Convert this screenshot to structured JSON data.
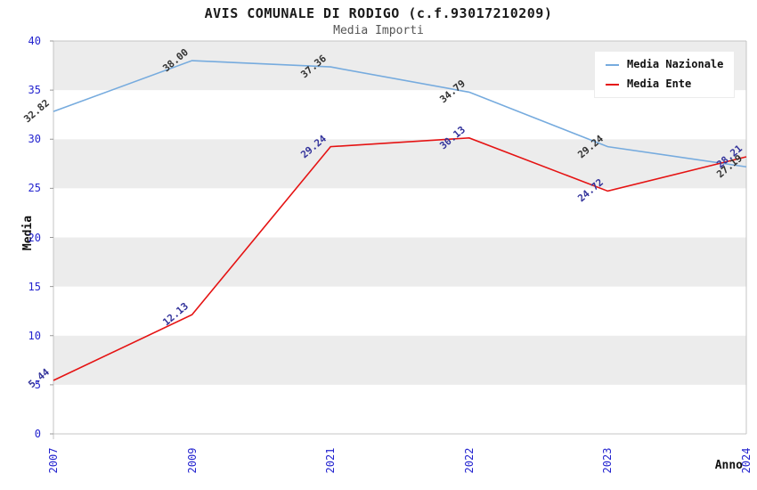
{
  "chart_data": {
    "type": "line",
    "title": "AVIS COMUNALE DI RODIGO (c.f.93017210209)",
    "subtitle": "Media Importi",
    "xlabel": "Anno",
    "ylabel": "Media",
    "categories": [
      "2007",
      "2009",
      "2021",
      "2022",
      "2023",
      "2024"
    ],
    "series": [
      {
        "name": "Media Nazionale",
        "color": "#76abde",
        "label_color": "#333333",
        "values": [
          32.82,
          38.0,
          37.36,
          34.79,
          29.24,
          27.19
        ],
        "labels": [
          "32.82",
          "38.00",
          "37.36",
          "34.79",
          "29.24",
          "27.19"
        ]
      },
      {
        "name": "Media Ente",
        "color": "#e51313",
        "label_color": "#33339b",
        "values": [
          5.44,
          12.13,
          29.24,
          30.13,
          24.72,
          28.21
        ],
        "labels": [
          "5.44",
          "12.13",
          "29.24",
          "30.13",
          "24.72",
          "28.21"
        ]
      }
    ],
    "ylim": [
      0,
      40
    ],
    "yticks": [
      0,
      5,
      10,
      15,
      20,
      25,
      30,
      35,
      40
    ],
    "grid": "horizontal-bands",
    "legend_position": "top-right",
    "colors": {
      "tick_label": "#2424cf",
      "band_gray": "#ececec",
      "band_white": "#ffffff",
      "axis_line": "#c4c4c4",
      "tick_mark": "#999999"
    }
  }
}
